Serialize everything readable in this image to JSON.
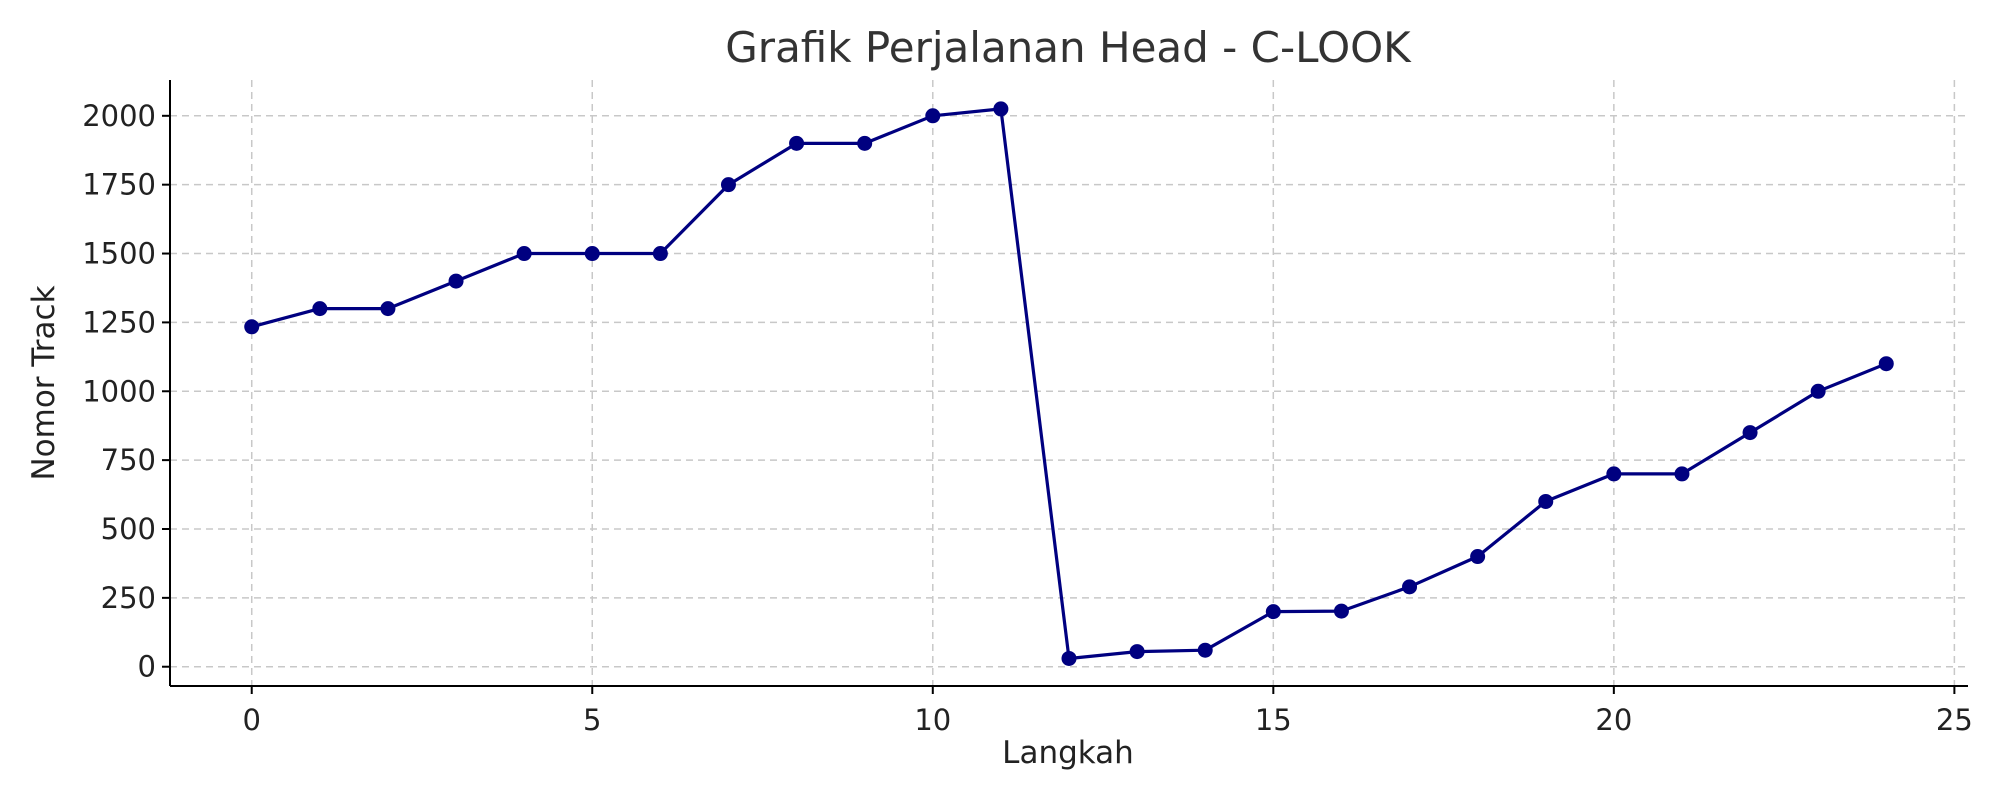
{
  "chart_data": {
    "type": "line",
    "title": "Grafik Perjalanan Head - C-LOOK",
    "xlabel": "Langkah",
    "ylabel": "Nomor Track",
    "xlim": [
      -1.2,
      25.2
    ],
    "ylim": [
      -70,
      2130
    ],
    "xticks": [
      0,
      5,
      10,
      15,
      20,
      25
    ],
    "yticks": [
      0,
      250,
      500,
      750,
      1000,
      1250,
      1500,
      1750,
      2000
    ],
    "grid": true,
    "colors": {
      "line": "#000080",
      "marker": "#000080"
    },
    "series": [
      {
        "name": "",
        "x": [
          0,
          1,
          2,
          3,
          4,
          5,
          6,
          7,
          8,
          9,
          10,
          11,
          12,
          13,
          14,
          15,
          16,
          17,
          18,
          19,
          20,
          21,
          22,
          23,
          24
        ],
        "y": [
          1234,
          1300,
          1300,
          1400,
          1500,
          1500,
          1500,
          1750,
          1900,
          1900,
          2000,
          2025,
          30,
          55,
          60,
          200,
          202,
          290,
          400,
          600,
          700,
          700,
          850,
          1000,
          1100
        ]
      }
    ]
  }
}
